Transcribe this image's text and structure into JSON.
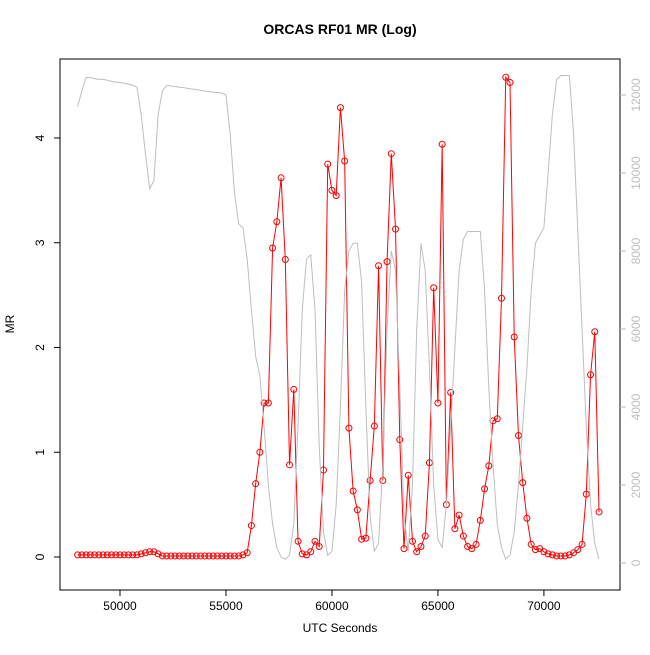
{
  "chart_data": {
    "type": "line",
    "title": "ORCAS RF01 MR (Log)",
    "x_label": "UTC Seconds",
    "y_label": "MR",
    "x": [
      48000,
      48200,
      48400,
      48600,
      48800,
      49000,
      49200,
      49400,
      49600,
      49800,
      50000,
      50200,
      50400,
      50600,
      50800,
      51000,
      51200,
      51400,
      51600,
      51800,
      52000,
      52200,
      52400,
      52600,
      52800,
      53000,
      53200,
      53400,
      53600,
      53800,
      54000,
      54200,
      54400,
      54600,
      54800,
      55000,
      55200,
      55400,
      55600,
      55800,
      56000,
      56200,
      56400,
      56600,
      56800,
      57000,
      57200,
      57400,
      57600,
      57800,
      58000,
      58200,
      58400,
      58600,
      58800,
      59000,
      59200,
      59400,
      59600,
      59800,
      60000,
      60200,
      60400,
      60600,
      60800,
      61000,
      61200,
      61400,
      61600,
      61800,
      62000,
      62200,
      62400,
      62600,
      62800,
      63000,
      63200,
      63400,
      63600,
      63800,
      64000,
      64200,
      64400,
      64600,
      64800,
      65000,
      65200,
      65400,
      65600,
      65800,
      66000,
      66200,
      66400,
      66600,
      66800,
      67000,
      67200,
      67400,
      67600,
      67800,
      68000,
      68200,
      68400,
      68600,
      68800,
      69000,
      69200,
      69400,
      69600,
      69800,
      70000,
      70200,
      70400,
      70600,
      70800,
      71000,
      71200,
      71400,
      71600,
      71800,
      72000,
      72200,
      72400,
      72600
    ],
    "series": [
      {
        "color": "#ff0000",
        "markers": true,
        "axis": "y",
        "values": [
          0.02,
          0.02,
          0.02,
          0.02,
          0.02,
          0.02,
          0.02,
          0.02,
          0.02,
          0.02,
          0.02,
          0.02,
          0.02,
          0.02,
          0.02,
          0.03,
          0.04,
          0.05,
          0.05,
          0.03,
          0.01,
          0.01,
          0.01,
          0.01,
          0.01,
          0.01,
          0.01,
          0.01,
          0.01,
          0.01,
          0.01,
          0.01,
          0.01,
          0.01,
          0.01,
          0.01,
          0.01,
          0.01,
          0.01,
          0.02,
          0.04,
          0.3,
          0.7,
          1.0,
          1.47,
          1.47,
          2.95,
          3.2,
          3.62,
          2.84,
          0.88,
          1.6,
          0.15,
          0.03,
          0.02,
          0.05,
          0.15,
          0.1,
          0.83,
          3.75,
          3.5,
          3.45,
          4.29,
          3.78,
          1.23,
          0.63,
          0.45,
          0.17,
          0.18,
          0.73,
          1.25,
          2.78,
          0.73,
          2.82,
          3.85,
          3.13,
          1.12,
          0.08,
          0.78,
          0.15,
          0.05,
          0.1,
          0.2,
          0.9,
          2.57,
          1.47,
          3.94,
          0.5,
          1.57,
          0.27,
          0.4,
          0.2,
          0.1,
          0.08,
          0.12,
          0.35,
          0.65,
          0.87,
          1.3,
          1.32,
          2.47,
          4.58,
          4.53,
          2.1,
          1.16,
          0.71,
          0.37,
          0.12,
          0.07,
          0.08,
          0.05,
          0.03,
          0.02,
          0.01,
          0.01,
          0.01,
          0.02,
          0.04,
          0.07,
          0.12,
          0.6,
          1.74,
          2.15,
          0.43
        ]
      },
      {
        "color": "#bebebe",
        "markers": false,
        "axis": "y2",
        "values": [
          11700,
          12100,
          12450,
          12450,
          12420,
          12400,
          12400,
          12380,
          12350,
          12330,
          12320,
          12300,
          12280,
          12250,
          12200,
          11500,
          10500,
          9600,
          9800,
          11500,
          12100,
          12250,
          12230,
          12220,
          12200,
          12190,
          12170,
          12150,
          12140,
          12120,
          12100,
          12090,
          12070,
          12060,
          12050,
          12000,
          11000,
          9500,
          8700,
          8600,
          7800,
          6500,
          5300,
          4800,
          3500,
          2000,
          1000,
          400,
          150,
          100,
          200,
          1000,
          3500,
          6500,
          7800,
          7900,
          6500,
          3000,
          800,
          200,
          300,
          1500,
          4000,
          7000,
          8000,
          8200,
          8200,
          7200,
          4000,
          1200,
          300,
          500,
          2500,
          6000,
          8000,
          7500,
          4500,
          1200,
          300,
          2000,
          6000,
          8200,
          7500,
          5000,
          2000,
          600,
          400,
          1500,
          3500,
          5500,
          7500,
          8300,
          8500,
          8500,
          8500,
          8500,
          7000,
          4500,
          2500,
          1000,
          400,
          100,
          200,
          800,
          2000,
          3500,
          5000,
          7000,
          8200,
          8400,
          8600,
          10000,
          11500,
          12400,
          12500,
          12500,
          12500,
          11000,
          8500,
          6000,
          3500,
          1500,
          500,
          100
        ]
      }
    ],
    "xlim": [
      47170,
      73590
    ],
    "ylim": [
      -0.315,
      4.754
    ],
    "y2lim": [
      -692,
      12923
    ],
    "xticks": [
      50000,
      55000,
      60000,
      65000,
      70000
    ],
    "yticks": [
      0,
      1,
      2,
      3,
      4
    ],
    "y2ticks": [
      0,
      2000,
      4000,
      6000,
      8000,
      10000,
      12000
    ],
    "y2_color": "#bebebe"
  }
}
